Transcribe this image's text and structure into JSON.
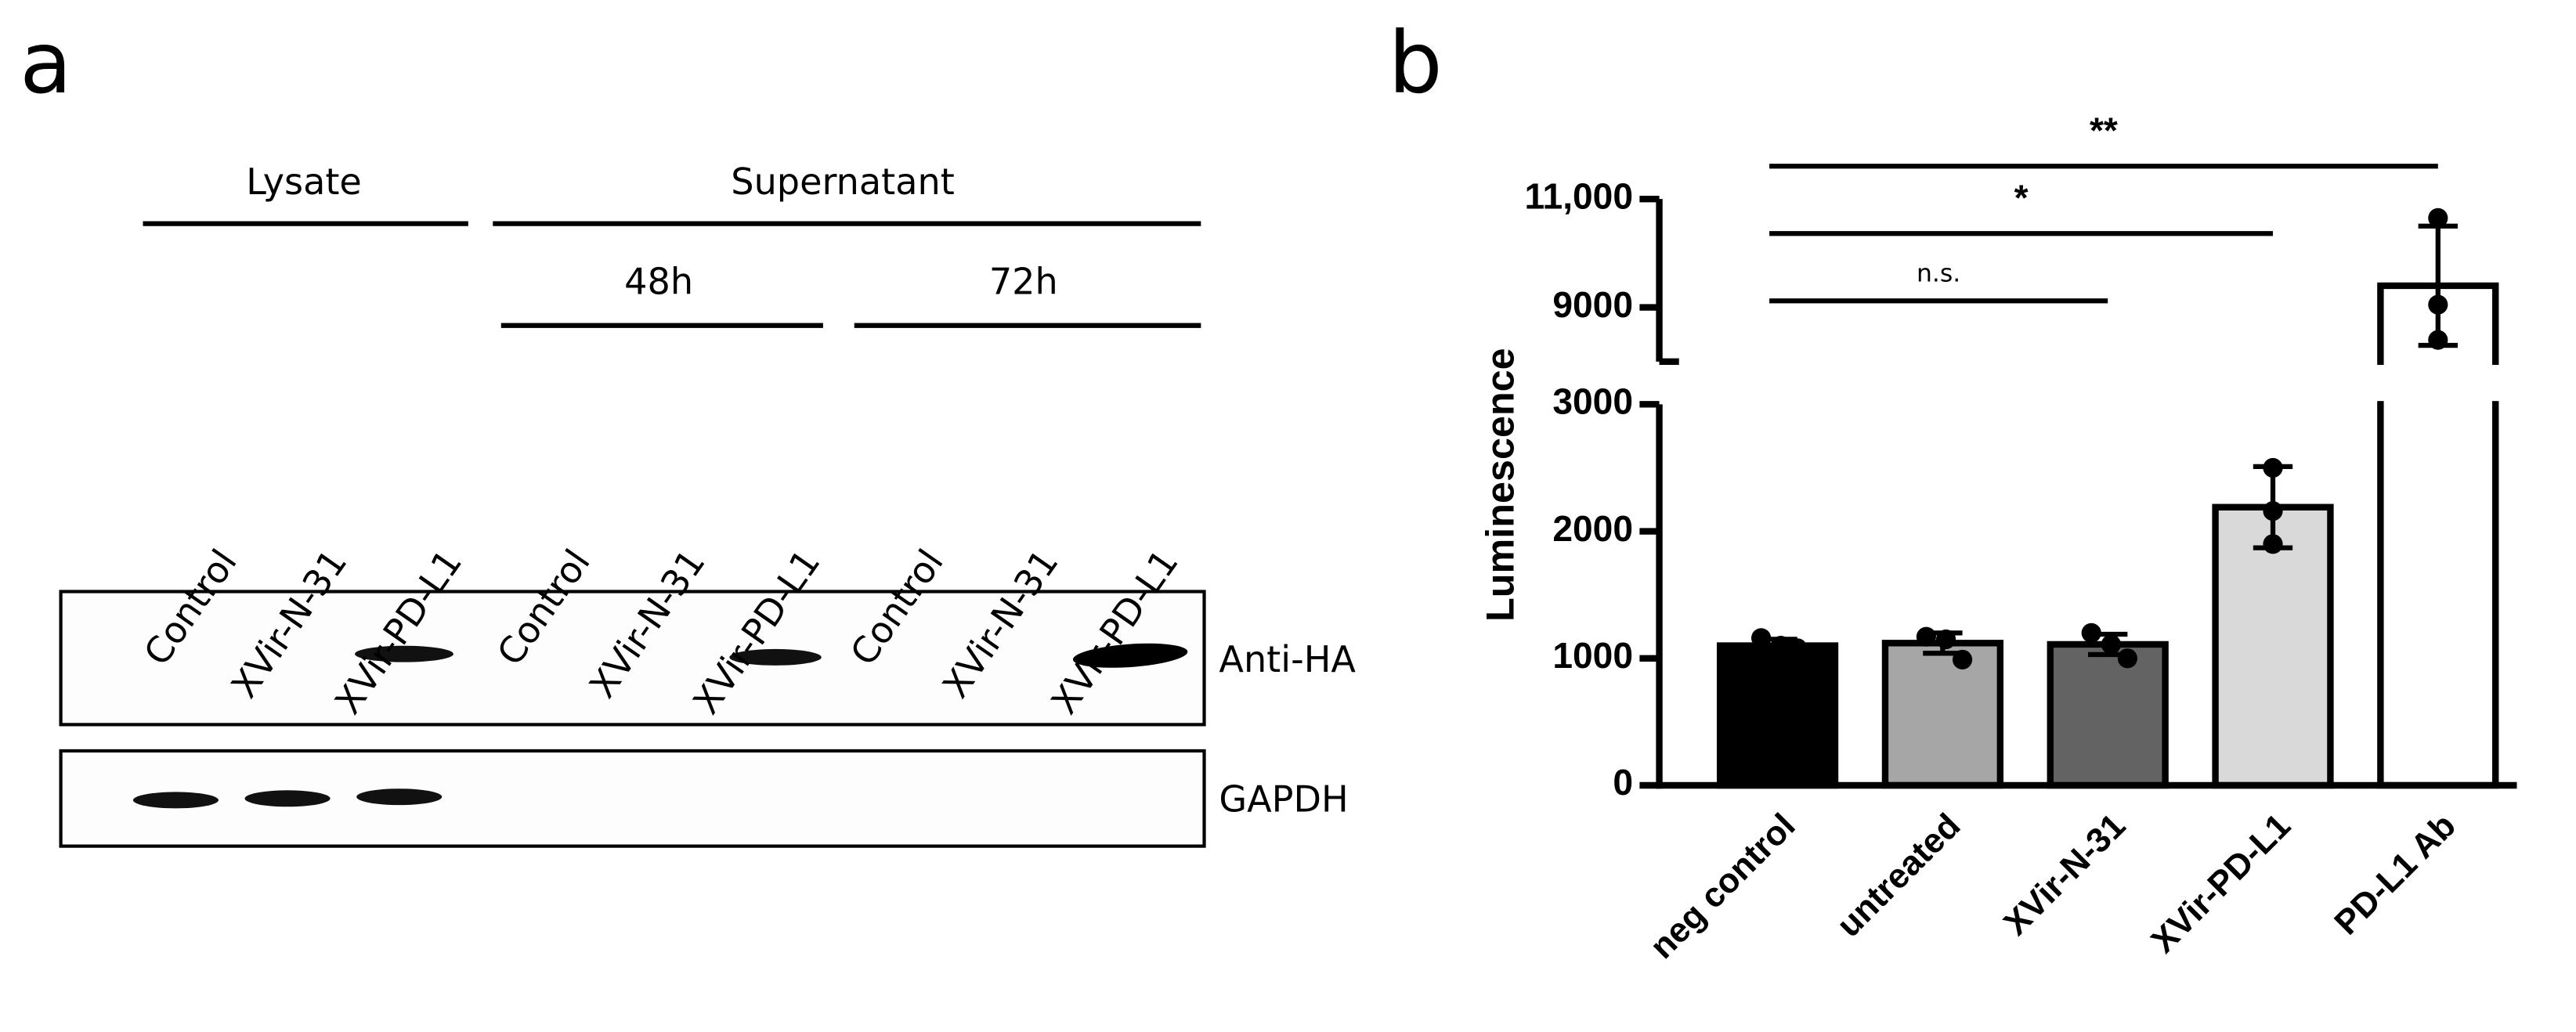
{
  "panel_labels": [
    "a",
    "b"
  ],
  "panel_a": {
    "groups": [
      "Lysate",
      "Supernatant"
    ],
    "timepoints": [
      "48h",
      "72h"
    ],
    "lanes": [
      "Control",
      "XVir-N-31",
      "XVir-PD-L1",
      "Control",
      "XVir-N-31",
      "XVir-PD-L1",
      "Control",
      "XVir-N-31",
      "XVir-PD-L1"
    ],
    "blots": [
      "Anti-HA",
      "GAPDH"
    ]
  },
  "chart_data": {
    "type": "bar",
    "y_label": "Luminescence",
    "categories": [
      "neg control",
      "untreated",
      "XVir-N-31",
      "XVir-PD-L1",
      "PD-L1 Ab"
    ],
    "values": [
      1100,
      1120,
      1110,
      2190,
      9400
    ],
    "errors": [
      50,
      80,
      80,
      320,
      1100
    ],
    "points": [
      [
        1160,
        1100,
        1080
      ],
      [
        1170,
        1150,
        990
      ],
      [
        1200,
        1110,
        1000
      ],
      [
        2500,
        2160,
        1900
      ],
      [
        10650,
        9050,
        8400
      ]
    ],
    "colors": [
      "#000000",
      "#a6a6a6",
      "#636363",
      "#d9d9d9",
      "#ffffff"
    ],
    "ylim": [
      0,
      11000
    ],
    "axis_break": [
      3000,
      8000
    ],
    "yticks": [
      0,
      1000,
      2000,
      3000,
      9000,
      {
        "value": 11000,
        "label": "11,000"
      }
    ],
    "significance": [
      "n.s.",
      "*",
      "**"
    ]
  }
}
